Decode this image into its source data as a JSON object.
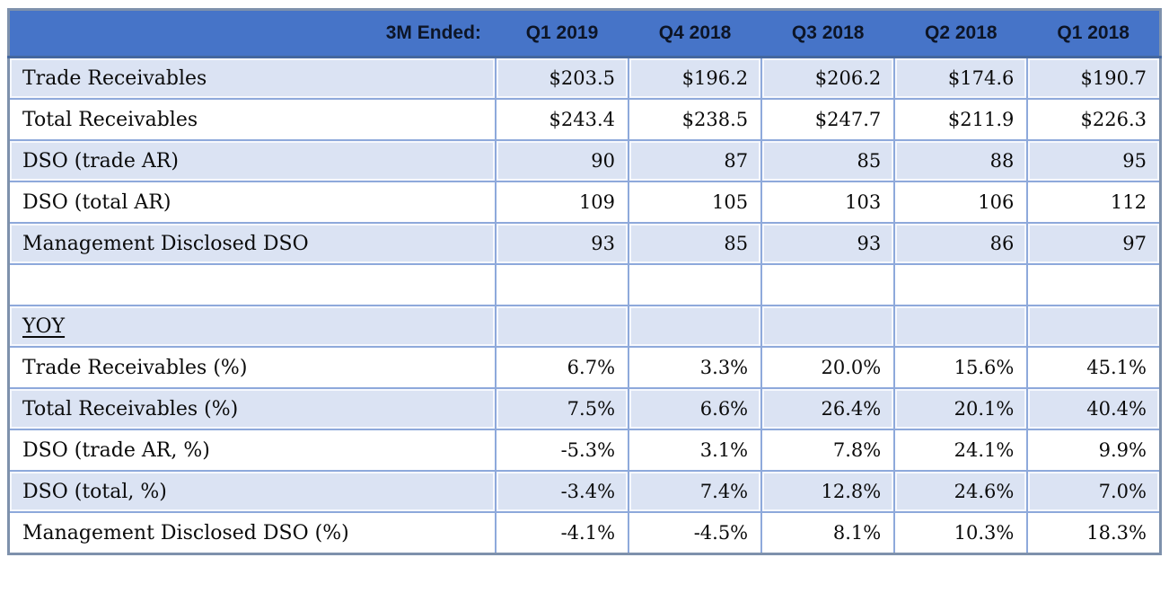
{
  "colors": {
    "header_fill": "#4674C8",
    "header_text": "#0D1526",
    "row_tint": "#DBE3F3",
    "grid_line": "#8EA9DB",
    "outer_border": "#7E91AC"
  },
  "table": {
    "header": {
      "cells": [
        "3M Ended:",
        "Q1 2019",
        "Q4 2018",
        "Q3 2018",
        "Q2 2018",
        "Q1 2018"
      ]
    },
    "rows": [
      {
        "label": "Trade Receivables",
        "values": [
          "$203.5",
          "$196.2",
          "$206.2",
          "$174.6",
          "$190.7"
        ],
        "tinted": true,
        "section": false
      },
      {
        "label": "Total Receivables",
        "values": [
          "$243.4",
          "$238.5",
          "$247.7",
          "$211.9",
          "$226.3"
        ],
        "tinted": false,
        "section": false
      },
      {
        "label": "DSO (trade AR)",
        "values": [
          "90",
          "87",
          "85",
          "88",
          "95"
        ],
        "tinted": true,
        "section": false
      },
      {
        "label": "DSO (total AR)",
        "values": [
          "109",
          "105",
          "103",
          "106",
          "112"
        ],
        "tinted": false,
        "section": false
      },
      {
        "label": "Management Disclosed DSO",
        "values": [
          "93",
          "85",
          "93",
          "86",
          "97"
        ],
        "tinted": true,
        "section": false
      },
      {
        "label": "",
        "values": [
          "",
          "",
          "",
          "",
          ""
        ],
        "tinted": false,
        "section": false
      },
      {
        "label": "YOY",
        "values": [
          "",
          "",
          "",
          "",
          ""
        ],
        "tinted": true,
        "section": true
      },
      {
        "label": "Trade Receivables (%)",
        "values": [
          "6.7%",
          "3.3%",
          "20.0%",
          "15.6%",
          "45.1%"
        ],
        "tinted": false,
        "section": false
      },
      {
        "label": "Total Receivables (%)",
        "values": [
          "7.5%",
          "6.6%",
          "26.4%",
          "20.1%",
          "40.4%"
        ],
        "tinted": true,
        "section": false
      },
      {
        "label": "DSO (trade AR, %)",
        "values": [
          "-5.3%",
          "3.1%",
          "7.8%",
          "24.1%",
          "9.9%"
        ],
        "tinted": false,
        "section": false
      },
      {
        "label": "DSO (total, %)",
        "values": [
          "-3.4%",
          "7.4%",
          "12.8%",
          "24.6%",
          "7.0%"
        ],
        "tinted": true,
        "section": false
      },
      {
        "label": "Management Disclosed DSO (%)",
        "values": [
          "-4.1%",
          "-4.5%",
          "8.1%",
          "10.3%",
          "18.3%"
        ],
        "tinted": false,
        "section": false
      }
    ]
  },
  "chart_data": {
    "type": "table",
    "columns": [
      "Q1 2019",
      "Q4 2018",
      "Q3 2018",
      "Q2 2018",
      "Q1 2018"
    ],
    "corner_label": "3M Ended:",
    "rows": [
      {
        "label": "Trade Receivables",
        "unit": "$M",
        "values": [
          203.5,
          196.2,
          206.2,
          174.6,
          190.7
        ]
      },
      {
        "label": "Total Receivables",
        "unit": "$M",
        "values": [
          243.4,
          238.5,
          247.7,
          211.9,
          226.3
        ]
      },
      {
        "label": "DSO (trade AR)",
        "unit": "days",
        "values": [
          90,
          87,
          85,
          88,
          95
        ]
      },
      {
        "label": "DSO (total AR)",
        "unit": "days",
        "values": [
          109,
          105,
          103,
          106,
          112
        ]
      },
      {
        "label": "Management Disclosed DSO",
        "unit": "days",
        "values": [
          93,
          85,
          93,
          86,
          97
        ]
      },
      {
        "label": "Trade Receivables (%)",
        "section": "YOY",
        "unit": "%",
        "values": [
          6.7,
          3.3,
          20.0,
          15.6,
          45.1
        ]
      },
      {
        "label": "Total Receivables (%)",
        "section": "YOY",
        "unit": "%",
        "values": [
          7.5,
          6.6,
          26.4,
          20.1,
          40.4
        ]
      },
      {
        "label": "DSO (trade AR, %)",
        "section": "YOY",
        "unit": "%",
        "values": [
          -5.3,
          3.1,
          7.8,
          24.1,
          9.9
        ]
      },
      {
        "label": "DSO (total, %)",
        "section": "YOY",
        "unit": "%",
        "values": [
          -3.4,
          7.4,
          12.8,
          24.6,
          7.0
        ]
      },
      {
        "label": "Management Disclosed DSO (%)",
        "section": "YOY",
        "unit": "%",
        "values": [
          -4.1,
          -4.5,
          8.1,
          10.3,
          18.3
        ]
      }
    ]
  }
}
